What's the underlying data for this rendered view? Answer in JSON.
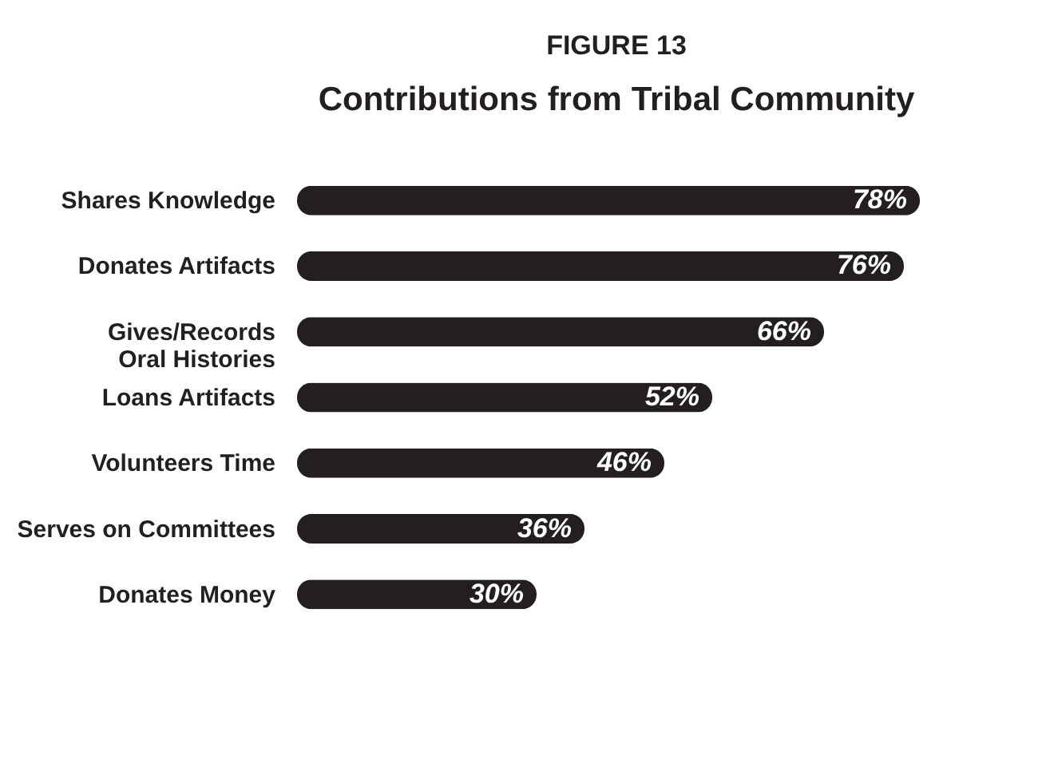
{
  "chart_data": {
    "type": "bar",
    "orientation": "horizontal",
    "title": "FIGURE 13",
    "subtitle": "Contributions from Tribal Community",
    "categories": [
      "Shares Knowledge",
      "Donates Artifacts",
      "Gives/Records\nOral Histories",
      "Loans Artifacts",
      "Volunteers Time",
      "Serves on Committees",
      "Donates Money"
    ],
    "values": [
      78,
      76,
      66,
      52,
      46,
      36,
      30
    ],
    "value_labels": [
      "78%",
      "76%",
      "66%",
      "52%",
      "46%",
      "36%",
      "30%"
    ],
    "color": "#231f20",
    "grid": false,
    "tick_labels": "y"
  }
}
